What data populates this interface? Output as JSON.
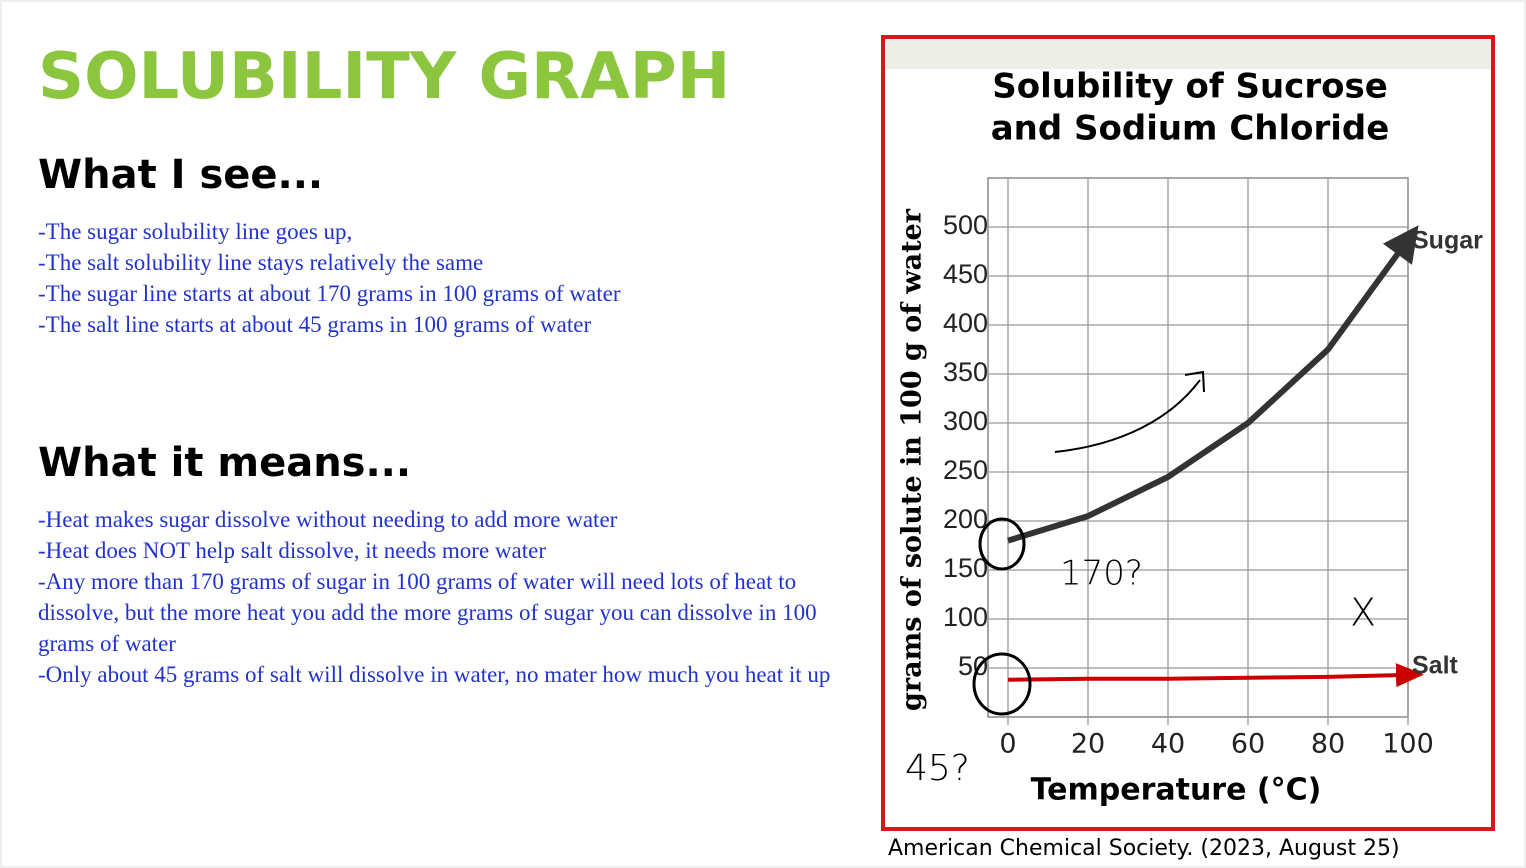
{
  "slide": {
    "title": "SOLUBILITY GRAPH",
    "see_heading": "What I see...",
    "see_items": [
      "-The sugar solubility line goes up,",
      "-The salt solubility line stays relatively the same",
      "-The sugar line starts at about 170 grams in 100 grams of water",
      "-The salt line starts at about 45 grams in 100 grams of water"
    ],
    "means_heading": "What it means...",
    "means_items": [
      "-Heat makes sugar dissolve without needing to add more water",
      "-Heat does NOT help salt dissolve, it needs more water",
      "-Any more than 170 grams of sugar in 100 grams of water will need lots of heat to dissolve, but the more heat you add the more grams of sugar you can dissolve in 100 grams of water",
      "-Only about 45 grams of salt will dissolve in water, no mater how much you heat it up"
    ],
    "citation": "American Chemical Society. (2023, August 25)"
  },
  "chart_data": {
    "type": "line",
    "title": "Solubility of Sucrose and Sodium Chloride",
    "x_label": "Temperature (°C)",
    "y_label": "grams of solute in 100 g of water",
    "x": [
      0,
      20,
      40,
      60,
      80,
      100
    ],
    "series": [
      {
        "name": "Sugar",
        "color": "#333333",
        "values": [
          180,
          205,
          245,
          300,
          375,
          487
        ]
      },
      {
        "name": "Salt",
        "color": "#cc0000",
        "values": [
          38,
          39,
          39,
          40,
          41,
          43
        ]
      }
    ],
    "xlim": [
      0,
      100
    ],
    "ylim": [
      0,
      550
    ],
    "xticks": [
      0,
      20,
      40,
      60,
      80,
      100
    ],
    "yticks": [
      50,
      100,
      150,
      200,
      250,
      300,
      350,
      400,
      450,
      500
    ],
    "grid": true,
    "annotations": [
      "170?",
      "45?",
      "X"
    ]
  }
}
